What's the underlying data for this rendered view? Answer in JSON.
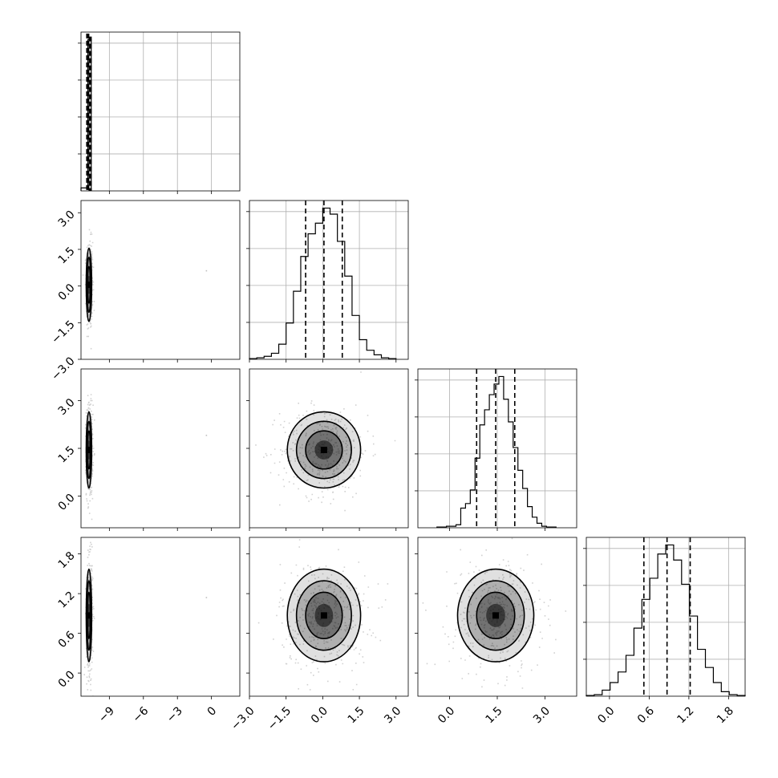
{
  "figure": {
    "type": "corner",
    "dimensions": 4,
    "grid": true,
    "colors": {
      "line": "#000000",
      "grid": "#b0b0b0",
      "density": "#000000",
      "background": "#ffffff"
    }
  },
  "chart_data": {
    "type": "heatmap",
    "kind": "corner-plot",
    "quantiles": [
      0.16,
      0.5,
      0.84
    ],
    "parameters": [
      {
        "range": [
          -11.5,
          2.5
        ],
        "ticks": [
          -9,
          -6,
          -3,
          0
        ],
        "tick_labels": [
          "−9",
          "−6",
          "−3",
          "0"
        ],
        "median": -10.8,
        "q16": -10.8,
        "q84": -10.8,
        "hist_edges": [
          -11.5,
          -10.9,
          -10.6
        ],
        "hist_counts": [
          2,
          100
        ],
        "spike_counts": [
          104,
          102
        ],
        "outlier": [
          -0.5,
          0.05
        ]
      },
      {
        "range": [
          -3.0,
          3.5
        ],
        "ticks": [
          -3.0,
          -1.5,
          0.0,
          1.5,
          3.0
        ],
        "tick_labels": [
          "−3.0",
          "−1.5",
          "0.0",
          "1.5",
          "3.0"
        ],
        "median": 0.05,
        "q16": -0.7,
        "q84": 0.8,
        "hist_edges": [
          -3.0,
          -2.7,
          -2.4,
          -2.1,
          -1.8,
          -1.5,
          -1.2,
          -0.9,
          -0.6,
          -0.3,
          0.0,
          0.3,
          0.6,
          0.9,
          1.2,
          1.5,
          1.8,
          2.1,
          2.4,
          2.7,
          3.0
        ],
        "hist_counts": [
          0.5,
          1,
          2,
          4,
          10,
          24,
          45,
          68,
          83,
          90,
          100,
          96,
          78,
          55,
          29,
          13,
          6,
          3,
          1,
          0.5
        ]
      },
      {
        "range": [
          -1.0,
          4.0
        ],
        "ticks": [
          0.0,
          1.5,
          3.0
        ],
        "tick_labels": [
          "0.0",
          "1.5",
          "3.0"
        ],
        "median": 1.45,
        "q16": 0.85,
        "q84": 2.05,
        "hist_edges": [
          -0.4,
          -0.1,
          0.2,
          0.35,
          0.5,
          0.65,
          0.8,
          0.95,
          1.1,
          1.25,
          1.4,
          1.55,
          1.7,
          1.85,
          2.0,
          2.15,
          2.3,
          2.45,
          2.6,
          2.75,
          2.9,
          3.05,
          3.35
        ],
        "hist_counts": [
          0.5,
          1,
          2,
          13,
          16,
          25,
          46,
          68,
          78,
          88,
          95,
          100,
          85,
          70,
          53,
          38,
          26,
          14,
          7,
          3,
          1,
          0.5
        ]
      },
      {
        "range": [
          -0.35,
          2.05
        ],
        "ticks": [
          0.0,
          0.6,
          1.2,
          1.8
        ],
        "tick_labels": [
          "0.0",
          "0.6",
          "1.2",
          "1.8"
        ],
        "median": 0.87,
        "q16": 0.52,
        "q84": 1.22,
        "hist_edges": [
          -0.35,
          -0.23,
          -0.11,
          0.01,
          0.13,
          0.25,
          0.37,
          0.49,
          0.61,
          0.73,
          0.85,
          0.97,
          1.09,
          1.21,
          1.33,
          1.45,
          1.57,
          1.69,
          1.81,
          1.93,
          2.05
        ],
        "hist_counts": [
          0.5,
          1,
          4,
          9,
          16,
          27,
          45,
          64,
          78,
          94,
          100,
          90,
          74,
          53,
          31,
          19,
          9,
          3,
          1,
          0.5
        ]
      }
    ]
  }
}
